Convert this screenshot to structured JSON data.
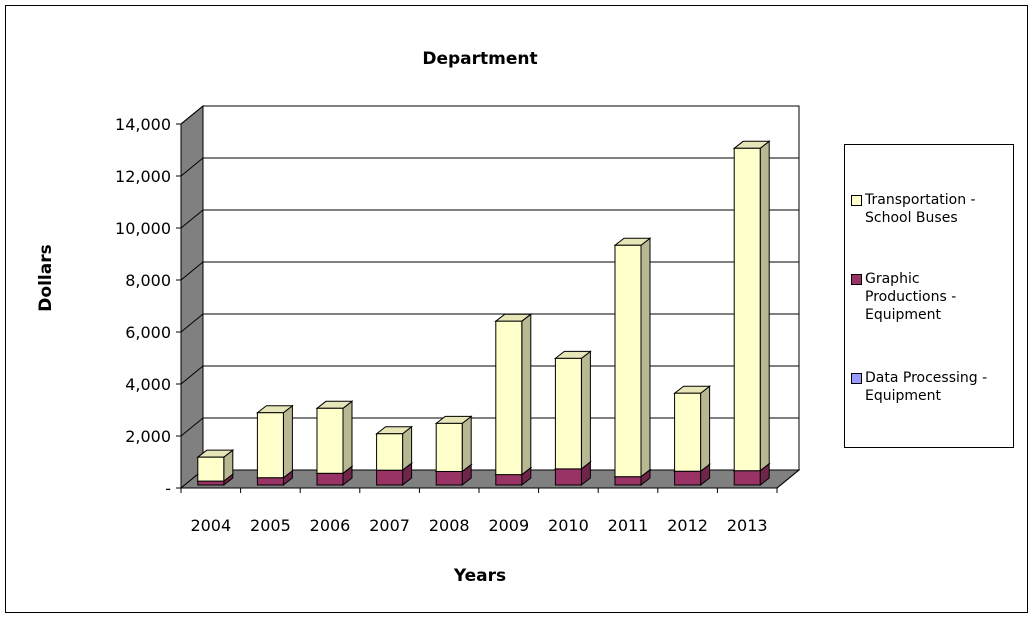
{
  "chart_data": {
    "type": "bar",
    "stacked": true,
    "three_d": true,
    "title": "Department",
    "xlabel": "Years",
    "ylabel": "Dollars",
    "categories": [
      "2004",
      "2005",
      "2006",
      "2007",
      "2008",
      "2009",
      "2010",
      "2011",
      "2012",
      "2013"
    ],
    "ylim": [
      0,
      14000
    ],
    "y_ticks": [
      0,
      2000,
      4000,
      6000,
      8000,
      10000,
      12000,
      14000
    ],
    "y_tick_labels": [
      "-",
      "2,000",
      "4,000",
      "6,000",
      "8,000",
      "10,000",
      "12,000",
      "14,000"
    ],
    "grid": true,
    "legend_position": "right",
    "series": [
      {
        "name": "Data Processing - Equipment",
        "values": [
          0,
          0,
          0,
          0,
          0,
          0,
          0,
          0,
          0,
          0
        ],
        "color": "#9999ff"
      },
      {
        "name": "Graphic Productions - Equipment",
        "values": [
          150,
          280,
          450,
          570,
          520,
          400,
          620,
          320,
          530,
          550
        ],
        "color": "#993366"
      },
      {
        "name": "Transportation - School Buses",
        "values": [
          920,
          2500,
          2500,
          1400,
          1850,
          5900,
          4250,
          8900,
          3000,
          12400
        ],
        "color": "#ffffcc"
      }
    ]
  },
  "legend": {
    "items": [
      {
        "line1": "Transportation -",
        "line2": "School Buses",
        "color": "#ffffcc"
      },
      {
        "line1": "Graphic",
        "line2": "Productions -",
        "line3": "Equipment",
        "color": "#993366"
      },
      {
        "line1": "Data Processing -",
        "line2": "Equipment",
        "color": "#9999ff"
      }
    ]
  }
}
